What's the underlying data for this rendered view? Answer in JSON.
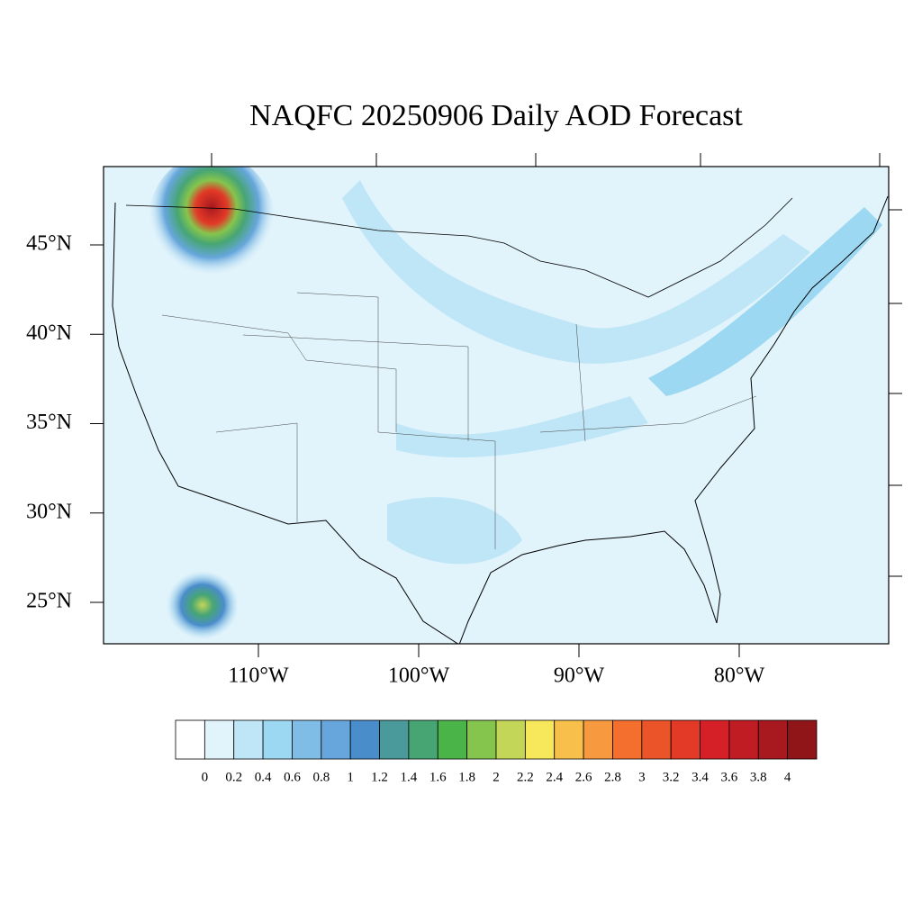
{
  "title": "NAQFC 20250906 Daily AOD Forecast",
  "lat_ticks": [
    {
      "value": 45,
      "label": "45°N"
    },
    {
      "value": 40,
      "label": "40°N"
    },
    {
      "value": 35,
      "label": "35°N"
    },
    {
      "value": 30,
      "label": "30°N"
    },
    {
      "value": 25,
      "label": "25°N"
    }
  ],
  "lon_ticks": [
    {
      "value": -110,
      "label": "110°W"
    },
    {
      "value": -100,
      "label": "100°W"
    },
    {
      "value": -90,
      "label": "90°W"
    },
    {
      "value": -80,
      "label": "80°W"
    }
  ],
  "colorbar": {
    "levels": [
      0,
      0.2,
      0.4,
      0.6,
      0.8,
      1,
      1.2,
      1.4,
      1.6,
      1.8,
      2,
      2.2,
      2.4,
      2.6,
      2.8,
      3,
      3.2,
      3.4,
      3.6,
      3.8,
      4
    ],
    "colors": [
      "#ffffff",
      "#e1f3fb",
      "#bfe6f7",
      "#9dd8f3",
      "#80bde6",
      "#66a6dc",
      "#4a8dcb",
      "#4a9a9c",
      "#47a574",
      "#4bb449",
      "#86c54d",
      "#c4d657",
      "#f7e75a",
      "#f8c04b",
      "#f79a3f",
      "#f46f2e",
      "#ea5428",
      "#e23a27",
      "#d52028",
      "#c01c24",
      "#a8181f",
      "#8f1519"
    ]
  }
}
